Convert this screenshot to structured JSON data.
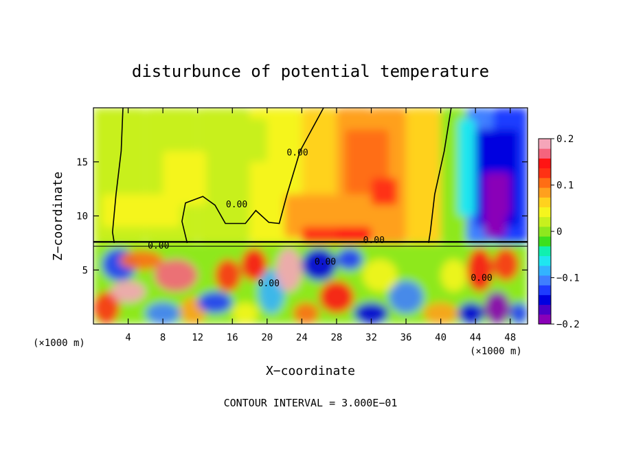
{
  "chart_data": {
    "type": "heatmap",
    "title": "disturbunce of potential temperature",
    "xlabel": "X−coordinate",
    "ylabel": "Z−coordinate",
    "x_unit_left": "(×1000 m)",
    "x_unit_right": "(×1000 m)",
    "footer": "CONTOUR INTERVAL = 3.000E−01",
    "xlim": [
      0,
      50
    ],
    "ylim": [
      0,
      20
    ],
    "x_ticks": [
      4,
      8,
      12,
      16,
      20,
      24,
      28,
      32,
      36,
      40,
      44,
      48
    ],
    "y_ticks": [
      5,
      10,
      15
    ],
    "colorbar": {
      "range": [
        -0.2,
        0.2
      ],
      "ticks": [
        {
          "value": 0.2,
          "label": "0.2"
        },
        {
          "value": 0.1,
          "label": "0.1"
        },
        {
          "value": 0,
          "label": "0"
        },
        {
          "value": -0.1,
          "label": "−0.1"
        },
        {
          "value": -0.2,
          "label": "−0.2"
        }
      ],
      "colors": [
        "#8a00b8",
        "#4b00c8",
        "#0000e0",
        "#1e3cff",
        "#3f7fff",
        "#33b3ff",
        "#1fe6f0",
        "#10f0b0",
        "#3ce01e",
        "#8ee81e",
        "#c8f01e",
        "#f5f51e",
        "#ffd21e",
        "#ffa01e",
        "#ff6e14",
        "#ff3214",
        "#ff1414",
        "#f5647d",
        "#f5a5b9"
      ]
    },
    "contour_labels": [
      "0.00",
      "0.00",
      "0.00",
      "0.00",
      "0.00",
      "0.00",
      "0.00"
    ],
    "cells": [
      [
        0,
        7.5,
        6,
        20,
        0.02
      ],
      [
        6,
        7.5,
        12,
        20,
        0.03
      ],
      [
        12,
        7.5,
        18,
        20,
        0.02
      ],
      [
        18,
        7.5,
        24,
        20,
        0.05
      ],
      [
        24,
        7.5,
        28,
        20,
        0.06
      ],
      [
        28,
        7.5,
        32,
        20,
        0.08
      ],
      [
        32,
        7.5,
        36,
        20,
        0.09
      ],
      [
        36,
        7.5,
        40,
        20,
        0.07
      ],
      [
        40,
        7.5,
        43,
        20,
        0.0
      ],
      [
        43,
        7.5,
        46,
        20,
        -0.1
      ],
      [
        46,
        7.5,
        50,
        20,
        -0.12
      ],
      [
        1,
        9,
        10,
        12,
        0.04
      ],
      [
        8,
        11,
        13,
        16,
        0.05
      ],
      [
        14,
        15,
        20,
        19,
        0.02
      ],
      [
        22,
        8,
        28,
        12,
        0.08
      ],
      [
        24,
        7.5,
        30,
        9,
        0.12
      ],
      [
        28,
        7.5,
        32,
        9,
        0.14
      ],
      [
        29,
        12,
        34,
        18,
        0.1
      ],
      [
        32,
        11,
        35,
        13.5,
        0.13
      ],
      [
        36,
        8,
        40,
        12,
        0.06
      ],
      [
        42,
        10,
        44,
        19,
        -0.06
      ],
      [
        44,
        9,
        49,
        18,
        -0.15
      ],
      [
        45,
        10,
        48,
        14,
        -0.19
      ],
      [
        45,
        8,
        47.5,
        11,
        -0.2
      ],
      [
        0,
        0,
        50,
        7.5,
        0.0
      ]
    ],
    "lower_patches": [
      [
        0,
        0,
        3,
        3,
        0.12
      ],
      [
        1,
        4,
        5,
        7,
        -0.12
      ],
      [
        2,
        2,
        6,
        4,
        0.18
      ],
      [
        3,
        5,
        8,
        6.8,
        0.1
      ],
      [
        6,
        0,
        10,
        2,
        -0.1
      ],
      [
        7,
        3,
        12,
        6,
        0.16
      ],
      [
        10,
        0,
        13,
        2.5,
        0.08
      ],
      [
        12,
        1,
        16,
        3,
        -0.12
      ],
      [
        14,
        3,
        17,
        6,
        0.12
      ],
      [
        16,
        0,
        19,
        2,
        0.05
      ],
      [
        17,
        4,
        20,
        7,
        0.14
      ],
      [
        19,
        1,
        22,
        5,
        -0.08
      ],
      [
        21,
        3,
        24,
        7,
        0.18
      ],
      [
        23,
        0,
        26,
        2,
        0.1
      ],
      [
        24,
        4,
        28,
        7,
        -0.15
      ],
      [
        26,
        1,
        30,
        4,
        0.14
      ],
      [
        28,
        5,
        31,
        7,
        -0.12
      ],
      [
        30,
        0,
        34,
        2,
        -0.14
      ],
      [
        31,
        3,
        35,
        6,
        0.05
      ],
      [
        34,
        1,
        38,
        4,
        -0.1
      ],
      [
        36,
        4,
        40,
        7,
        0.0
      ],
      [
        38,
        0,
        42,
        2,
        0.08
      ],
      [
        40,
        3,
        43,
        6,
        0.05
      ],
      [
        42,
        0,
        45,
        2,
        -0.15
      ],
      [
        43,
        3,
        46,
        7,
        0.14
      ],
      [
        45,
        0,
        48,
        3,
        -0.18
      ],
      [
        46,
        4,
        49,
        7,
        0.12
      ],
      [
        48,
        0,
        50,
        2,
        -0.12
      ]
    ]
  }
}
